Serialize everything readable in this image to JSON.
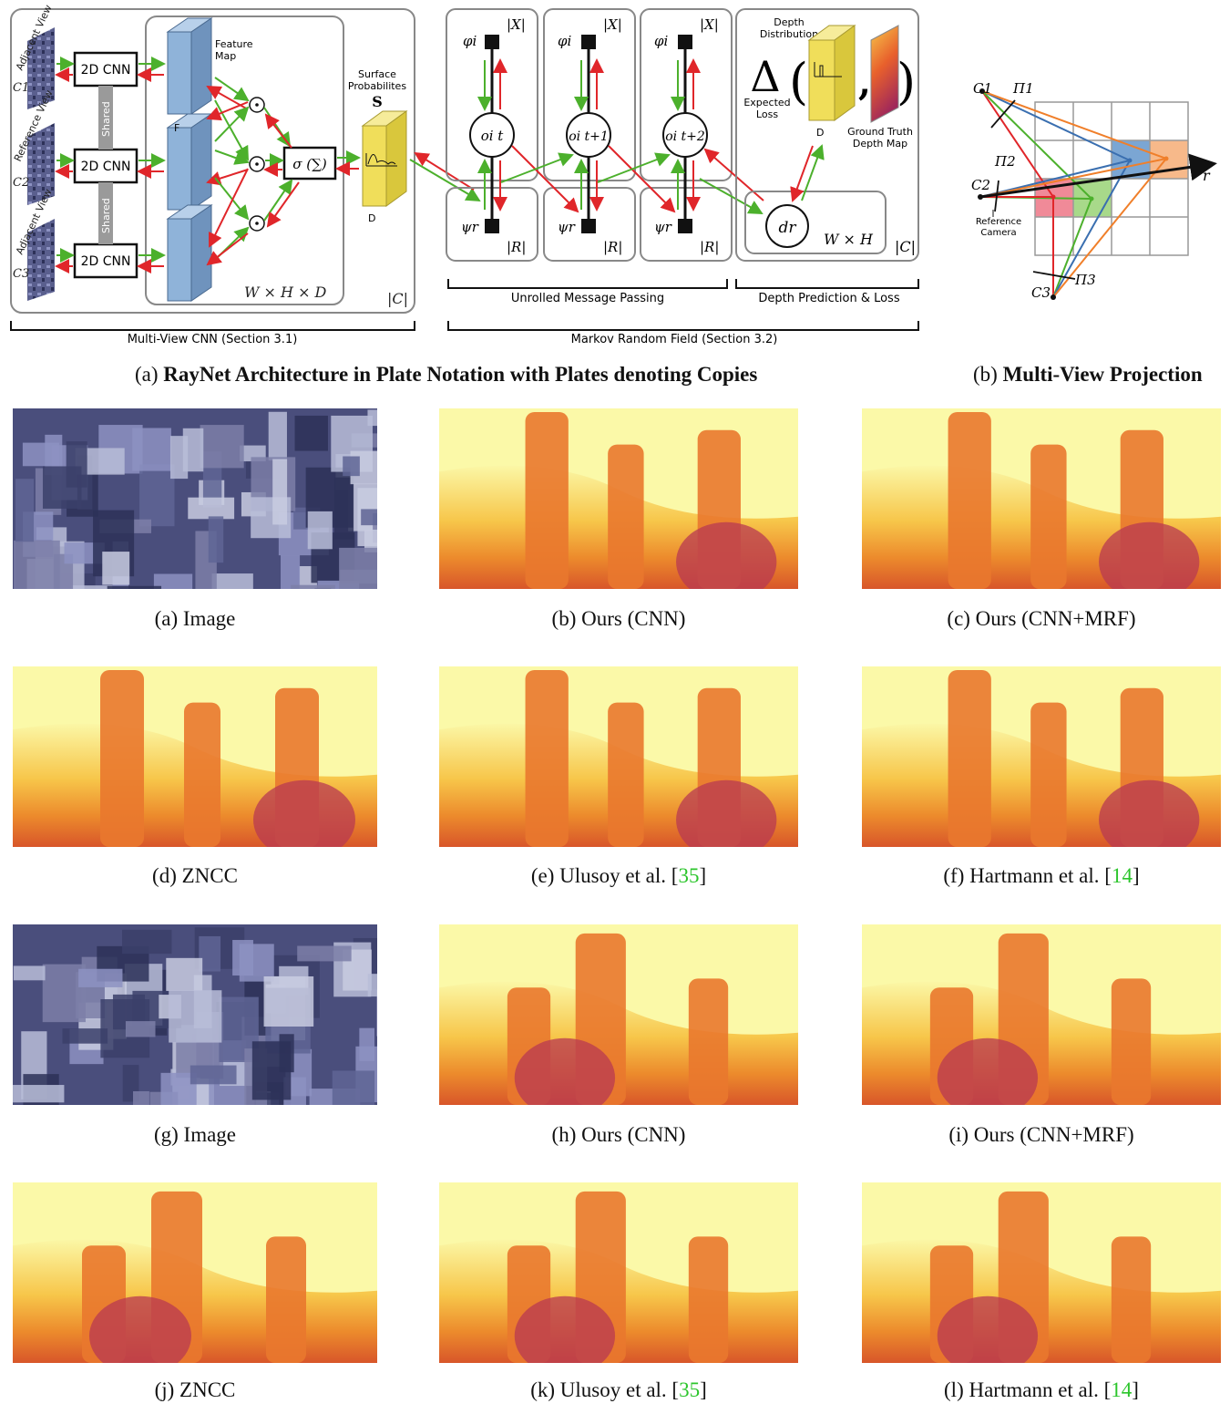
{
  "figure_a": {
    "caption_letter": "(a)",
    "caption_bold": "RayNet Architecture in Plate Notation with Plates denoting Copies",
    "views": [
      "Adjacent View",
      "Reference View",
      "Adjacent View"
    ],
    "cameras": [
      "C1",
      "C2",
      "C3"
    ],
    "cnn_label": "2D CNN",
    "shared_label": "Shared",
    "feature_map_label": [
      "Feature",
      "Map"
    ],
    "f_label": "F",
    "plate_whd": "W × H × D",
    "plate_c": "|C|",
    "sigma_label": "σ (∑)",
    "surface_prob_label": [
      "Surface",
      "Probabilites"
    ],
    "surface_prob_symbol": "S",
    "d_label": "D",
    "phi": "φi",
    "psi": "ψr",
    "plate_x": "|X|",
    "plate_r": "|R|",
    "nodes": [
      "oi t",
      "oi t+1",
      "oi t+2"
    ],
    "depth_distribution_label": [
      "Depth",
      "Distribution"
    ],
    "delta": "Δ",
    "expected_loss_label": [
      "Expected",
      "Loss"
    ],
    "gt_label": [
      "Ground Truth",
      "Depth Map"
    ],
    "dr_label": "dr",
    "plate_wh": "W × H",
    "section_unrolled": "Unrolled Message Passing",
    "section_depth": "Depth Prediction & Loss",
    "section_cnn": "Multi-View CNN (Section 3.1)",
    "section_mrf": "Markov Random Field (Section 3.2)"
  },
  "figure_b": {
    "caption_letter": "(b)",
    "caption_bold": "Multi-View Projection",
    "c1": "C1",
    "c2": "C2",
    "c3": "C3",
    "p1": "Π1",
    "p2": "Π2",
    "p3": "Π3",
    "ref_camera": [
      "Reference",
      "Camera"
    ],
    "ray": "r"
  },
  "colors": {
    "green": "#4cb02c",
    "red": "#e0262a",
    "blue_box": "#8fb3d9",
    "yellow_box": "#f0de5a"
  },
  "grid_captions": [
    {
      "text": "(a) Image",
      "ref": ""
    },
    {
      "text": "(b) Ours (CNN)",
      "ref": ""
    },
    {
      "text": "(c) Ours (CNN+MRF)",
      "ref": ""
    },
    {
      "text": "(d) ZNCC",
      "ref": ""
    },
    {
      "text": "(e) Ulusoy et al. [",
      "ref": "35"
    },
    {
      "text": "(f) Hartmann et al. [",
      "ref": "14"
    },
    {
      "text": "(g) Image",
      "ref": ""
    },
    {
      "text": "(h) Ours (CNN)",
      "ref": ""
    },
    {
      "text": "(i) Ours (CNN+MRF)",
      "ref": ""
    },
    {
      "text": "(j) ZNCC",
      "ref": ""
    },
    {
      "text": "(k) Ulusoy et al. [",
      "ref": "35"
    },
    {
      "text": "(l) Hartmann et al. [",
      "ref": "14"
    }
  ]
}
